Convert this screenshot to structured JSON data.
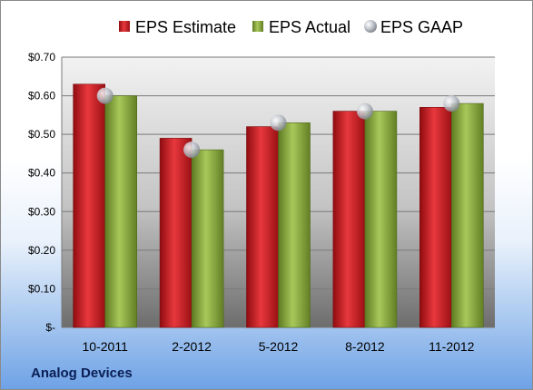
{
  "chart_data": {
    "type": "bar",
    "categories": [
      "10-2011",
      "2-2012",
      "5-2012",
      "8-2012",
      "11-2012"
    ],
    "series": [
      {
        "name": "EPS Estimate",
        "values": [
          0.63,
          0.49,
          0.52,
          0.56,
          0.57
        ],
        "color": "#c8171e"
      },
      {
        "name": "EPS Actual",
        "values": [
          0.6,
          0.46,
          0.53,
          0.56,
          0.58
        ],
        "color": "#8aab3b"
      },
      {
        "name": "EPS GAAP",
        "values": [
          0.6,
          0.46,
          0.53,
          0.56,
          0.58
        ],
        "color": "#b8bcc4",
        "marker": "sphere"
      }
    ],
    "ylim": [
      0,
      0.7
    ],
    "yticks": [
      {
        "value": 0,
        "label": "$-"
      },
      {
        "value": 0.1,
        "label": "$0.10"
      },
      {
        "value": 0.2,
        "label": "$0.20"
      },
      {
        "value": 0.3,
        "label": "$0.30"
      },
      {
        "value": 0.4,
        "label": "$0.40"
      },
      {
        "value": 0.5,
        "label": "$0.50"
      },
      {
        "value": 0.6,
        "label": "$0.60"
      },
      {
        "value": 0.7,
        "label": "$0.70"
      }
    ],
    "grid": true,
    "legend": "top"
  },
  "footer": {
    "company": "Analog Devices"
  }
}
